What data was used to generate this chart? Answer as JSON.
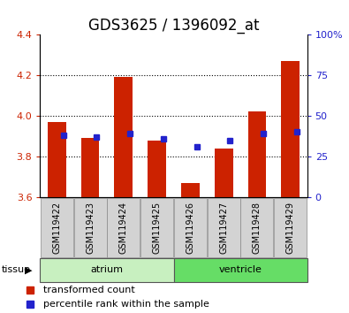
{
  "title": "GDS3625 / 1396092_at",
  "samples": [
    "GSM119422",
    "GSM119423",
    "GSM119424",
    "GSM119425",
    "GSM119426",
    "GSM119427",
    "GSM119428",
    "GSM119429"
  ],
  "tissue_groups": [
    {
      "label": "atrium",
      "samples": [
        0,
        1,
        2,
        3
      ],
      "color": "#c8f0c0"
    },
    {
      "label": "ventricle",
      "samples": [
        4,
        5,
        6,
        7
      ],
      "color": "#66dd66"
    }
  ],
  "transformed_count": [
    3.97,
    3.89,
    4.19,
    3.88,
    3.67,
    3.84,
    4.02,
    4.27
  ],
  "percentile_rank": [
    38,
    37,
    39,
    36,
    31,
    35,
    39,
    40
  ],
  "ylim_left": [
    3.6,
    4.4
  ],
  "ylim_right": [
    0,
    100
  ],
  "yticks_left": [
    3.6,
    3.8,
    4.0,
    4.2,
    4.4
  ],
  "yticks_right": [
    0,
    25,
    50,
    75,
    100
  ],
  "bar_color": "#cc2200",
  "dot_color": "#2222cc",
  "bar_width": 0.55,
  "baseline": 3.6,
  "bg_color": "#ffffff",
  "legend_items": [
    {
      "label": "transformed count",
      "color": "#cc2200"
    },
    {
      "label": "percentile rank within the sample",
      "color": "#2222cc"
    }
  ],
  "tissue_label": "tissue",
  "title_fontsize": 12,
  "tick_fontsize": 8,
  "label_fontsize": 8,
  "sample_fontsize": 7
}
